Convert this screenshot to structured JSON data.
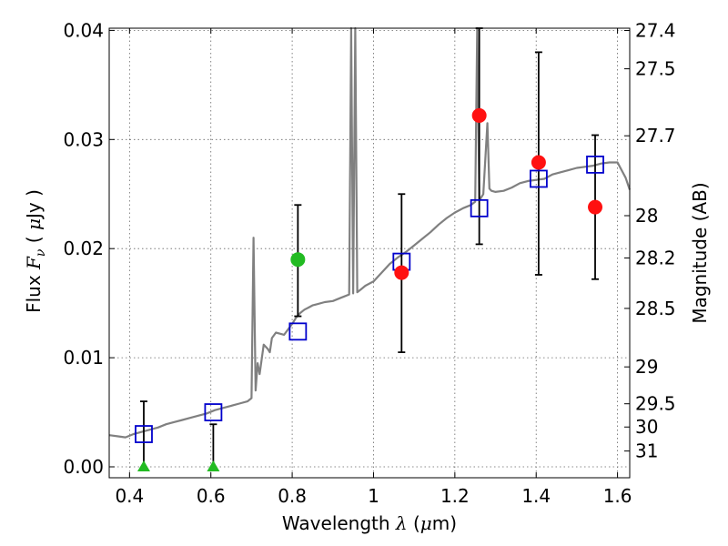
{
  "chart_data": {
    "type": "scatter",
    "xlabel": "Wavelength λ (μm)",
    "ylabel": "Flux F_ν ( μJy )",
    "y2label": "Magnitude (AB)",
    "xlim": [
      0.35,
      1.63
    ],
    "ylim": [
      -0.001,
      0.0402
    ],
    "grid": true,
    "x_ticks": [
      0.4,
      0.6,
      0.8,
      1.0,
      1.2,
      1.4,
      1.6
    ],
    "x_tick_labels": [
      "0.4",
      "0.6",
      "0.8",
      "1",
      "1.2",
      "1.4",
      "1.6"
    ],
    "y_ticks": [
      0.0,
      0.01,
      0.02,
      0.03,
      0.04
    ],
    "y_tick_labels": [
      "0.00",
      "0.01",
      "0.02",
      "0.03",
      "0.04"
    ],
    "y2_ticks": [
      {
        "label": "27.4",
        "flux": 0.03999
      },
      {
        "label": "27.5",
        "flux": 0.03648
      },
      {
        "label": "27.7",
        "flux": 0.03034
      },
      {
        "label": "28",
        "flux": 0.02302
      },
      {
        "label": "28.2",
        "flux": 0.01914
      },
      {
        "label": "28.5",
        "flux": 0.01452
      },
      {
        "label": "29",
        "flux": 0.00916
      },
      {
        "label": "29.5",
        "flux": 0.00578
      },
      {
        "label": "30",
        "flux": 0.00365
      },
      {
        "label": "31",
        "flux": 0.00145
      }
    ],
    "colors": {
      "model": "#808080",
      "model_photometry": "#0000cc",
      "detection_green": "#22bb22",
      "detection_red": "#ff1111",
      "upper_limit": "#22bb22",
      "errorbar": "#000000",
      "grid": "#666666"
    },
    "series": [
      {
        "role": "model_spectrum",
        "style": "line",
        "x": [
          0.35,
          0.37,
          0.39,
          0.41,
          0.43,
          0.45,
          0.47,
          0.49,
          0.51,
          0.53,
          0.55,
          0.57,
          0.59,
          0.61,
          0.63,
          0.65,
          0.67,
          0.69,
          0.7,
          0.705,
          0.71,
          0.715,
          0.72,
          0.73,
          0.74,
          0.745,
          0.75,
          0.76,
          0.77,
          0.78,
          0.79,
          0.8,
          0.81,
          0.82,
          0.83,
          0.84,
          0.85,
          0.86,
          0.88,
          0.9,
          0.92,
          0.94,
          0.945,
          0.95,
          0.955,
          0.96,
          0.97,
          0.98,
          1.0,
          1.02,
          1.04,
          1.06,
          1.08,
          1.1,
          1.12,
          1.14,
          1.16,
          1.18,
          1.2,
          1.22,
          1.24,
          1.25,
          1.255,
          1.26,
          1.265,
          1.27,
          1.28,
          1.285,
          1.29,
          1.3,
          1.32,
          1.34,
          1.36,
          1.38,
          1.4,
          1.42,
          1.44,
          1.46,
          1.48,
          1.5,
          1.52,
          1.54,
          1.56,
          1.58,
          1.6,
          1.62,
          1.63
        ],
        "y": [
          0.0029,
          0.0028,
          0.0027,
          0.003,
          0.0032,
          0.0034,
          0.0036,
          0.0039,
          0.0041,
          0.0043,
          0.0045,
          0.0047,
          0.0049,
          0.0052,
          0.0054,
          0.0056,
          0.0058,
          0.006,
          0.0063,
          0.021,
          0.007,
          0.0095,
          0.0085,
          0.0112,
          0.0108,
          0.0105,
          0.0118,
          0.0123,
          0.0122,
          0.0121,
          0.0126,
          0.0131,
          0.0137,
          0.0141,
          0.0144,
          0.0146,
          0.0148,
          0.0149,
          0.0151,
          0.0152,
          0.0155,
          0.0158,
          0.0402,
          0.0159,
          0.0402,
          0.016,
          0.0163,
          0.0166,
          0.017,
          0.0178,
          0.0186,
          0.0192,
          0.0197,
          0.0203,
          0.0209,
          0.0215,
          0.0222,
          0.0228,
          0.0233,
          0.0237,
          0.024,
          0.0243,
          0.0402,
          0.0244,
          0.0247,
          0.025,
          0.0315,
          0.0255,
          0.0253,
          0.0252,
          0.0253,
          0.0256,
          0.026,
          0.0262,
          0.0263,
          0.0264,
          0.0268,
          0.027,
          0.0272,
          0.0274,
          0.0275,
          0.0276,
          0.0278,
          0.0279,
          0.0279,
          0.0265,
          0.0254
        ]
      },
      {
        "role": "model_photometry",
        "style": "open-square",
        "x": [
          0.435,
          0.606,
          0.814,
          1.069,
          1.26,
          1.406,
          1.545
        ],
        "y": [
          0.003,
          0.005,
          0.0124,
          0.0188,
          0.0237,
          0.0264,
          0.0277
        ]
      },
      {
        "role": "observed_detections",
        "style": "filled-circle",
        "points": [
          {
            "x": 0.814,
            "y": 0.019,
            "err_low": 0.0052,
            "err_high": 0.005,
            "color": "green"
          },
          {
            "x": 1.069,
            "y": 0.0178,
            "err_low": 0.0073,
            "err_high": 0.0072,
            "color": "red"
          },
          {
            "x": 1.26,
            "y": 0.0322,
            "err_low": 0.0118,
            "err_high": 0.0088,
            "color": "red"
          },
          {
            "x": 1.406,
            "y": 0.0279,
            "err_low": 0.0103,
            "err_high": 0.0101,
            "color": "red"
          },
          {
            "x": 1.545,
            "y": 0.0238,
            "err_low": 0.0066,
            "err_high": 0.0066,
            "color": "red"
          }
        ]
      },
      {
        "role": "observed_nondetections",
        "style": "triangle",
        "points": [
          {
            "x": 0.435,
            "y": 0.0,
            "err_low": 0.0,
            "err_high": 0.006
          },
          {
            "x": 0.606,
            "y": 0.0,
            "err_low": 0.0,
            "err_high": 0.0039
          }
        ]
      }
    ]
  }
}
